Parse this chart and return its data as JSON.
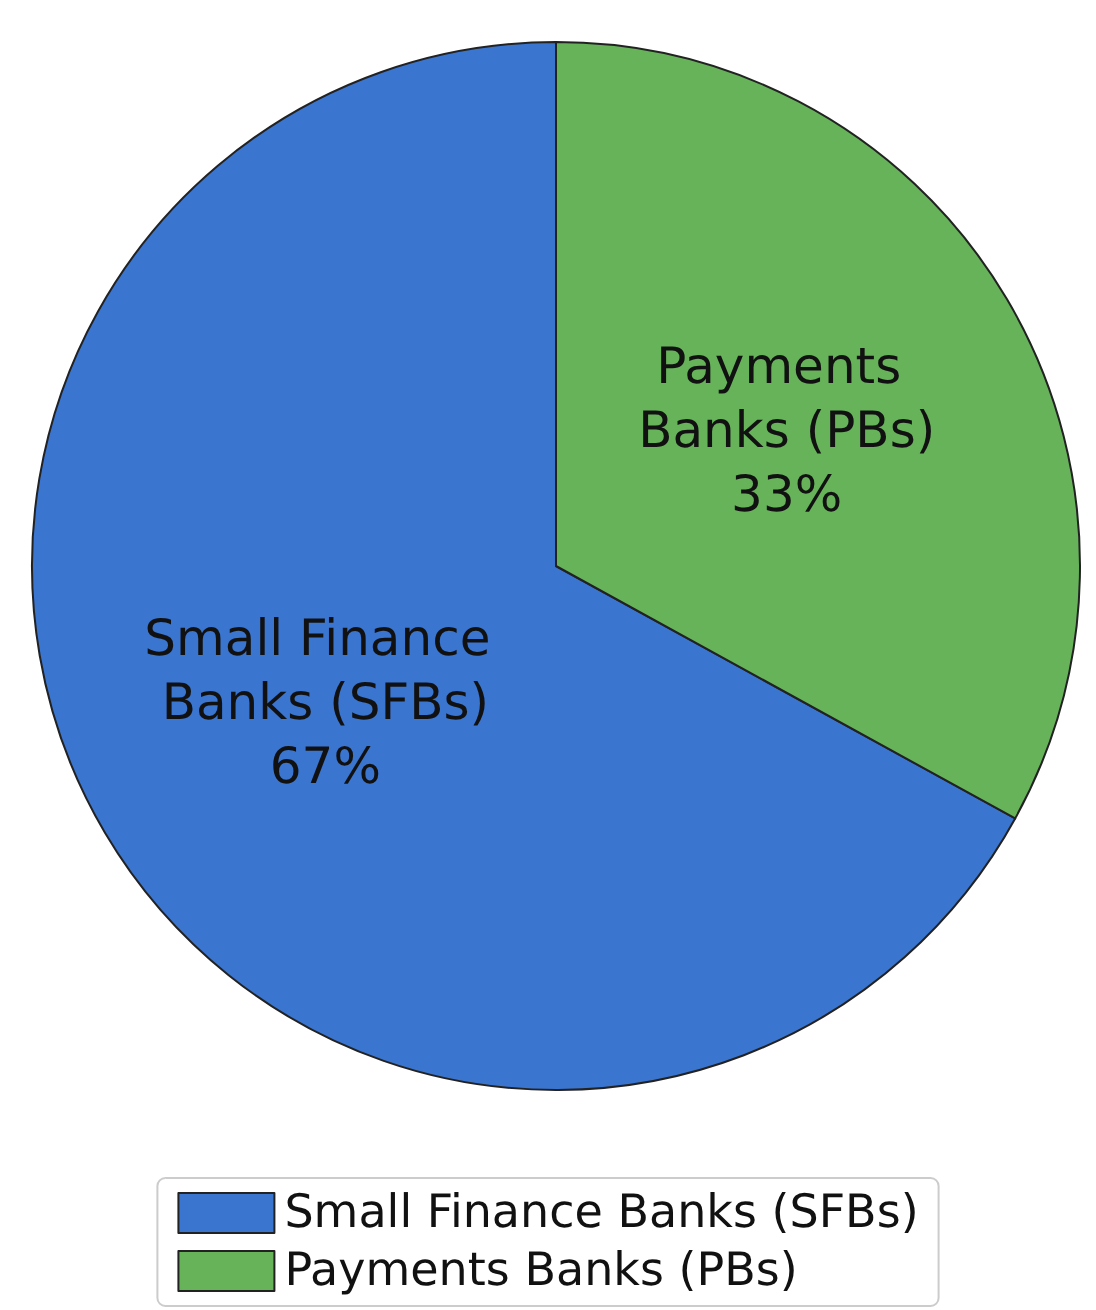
{
  "chart_data": {
    "type": "pie",
    "categories": [
      "Small Finance Banks (SFBs)",
      "Payments Banks (PBs)"
    ],
    "values": [
      67,
      33
    ],
    "colors": [
      "#3a75d0",
      "#66b35a"
    ],
    "value_labels": [
      "67%",
      "33%"
    ],
    "legend": "bottom"
  }
}
